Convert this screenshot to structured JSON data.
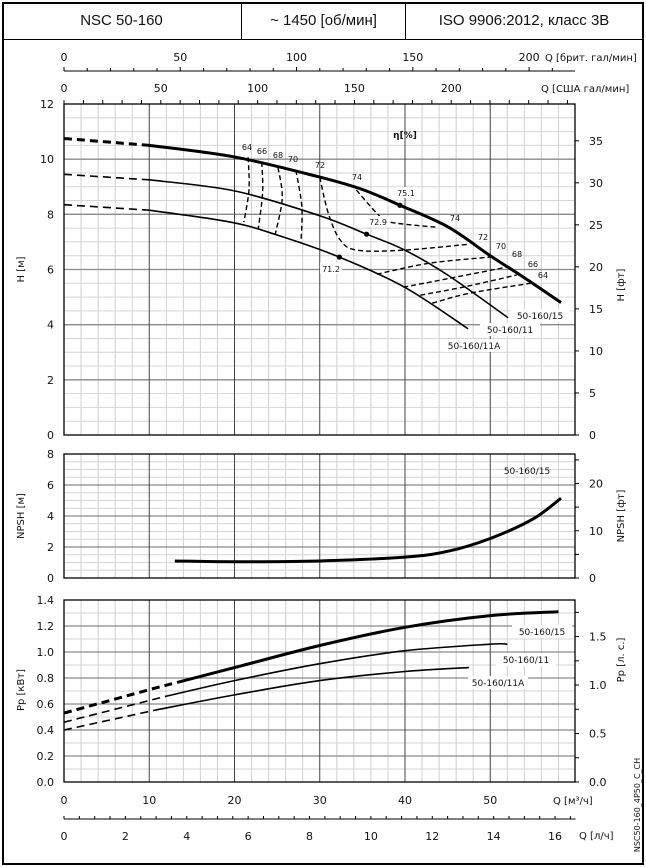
{
  "header": {
    "model": "NSC 50-160",
    "speed": "~ 1450 [об/мин]",
    "standard": "ISO 9906:2012, класс 3B"
  },
  "doc_code": "NSC50-160_4P50_C_CH",
  "chart_data": [
    {
      "type": "line",
      "title": "H-Q",
      "xlabel": "Q [м³/ч]",
      "ylabel": "H [м]",
      "ylabel_right": "H [фт]",
      "xlim": [
        0,
        60
      ],
      "ylim": [
        0,
        12
      ],
      "yticks": [
        "0",
        "2",
        "4",
        "6",
        "8",
        "10",
        "12"
      ],
      "yticks_right": [
        "0",
        "5",
        "10",
        "15",
        "20",
        "25",
        "30",
        "35"
      ],
      "grid": true,
      "efficiency_title": "η[%]",
      "series": [
        {
          "name": "50-160/15",
          "dashed_until": 10,
          "bold": true,
          "points": [
            [
              0,
              10.75
            ],
            [
              10,
              10.5
            ],
            [
              20,
              10.08
            ],
            [
              30,
              9.35
            ],
            [
              35,
              8.9
            ],
            [
              39.4,
              8.33
            ],
            [
              45,
              7.55
            ],
            [
              50,
              6.5
            ],
            [
              54,
              5.7
            ],
            [
              58.3,
              4.8
            ]
          ]
        },
        {
          "name": "50-160/11",
          "dashed_until": 10,
          "points": [
            [
              0,
              9.45
            ],
            [
              10,
              9.25
            ],
            [
              20,
              8.85
            ],
            [
              30,
              7.95
            ],
            [
              35.5,
              7.28
            ],
            [
              40,
              6.7
            ],
            [
              45,
              5.8
            ],
            [
              52.1,
              4.25
            ]
          ]
        },
        {
          "name": "50-160/11A",
          "dashed_until": 10,
          "points": [
            [
              0,
              8.35
            ],
            [
              10,
              8.15
            ],
            [
              19.5,
              7.72
            ],
            [
              25,
              7.25
            ],
            [
              32.3,
              6.45
            ],
            [
              40,
              5.35
            ],
            [
              47.4,
              3.85
            ]
          ]
        }
      ],
      "best_efficiency_points": [
        {
          "label": "75.1",
          "q": 39.4,
          "h": 8.33
        },
        {
          "label": "72.9",
          "q": 35.5,
          "h": 7.28
        },
        {
          "label": "71.2",
          "q": 32.3,
          "h": 6.45
        }
      ],
      "iso_efficiency": [
        {
          "label": "64",
          "points": [
            [
              21.6,
              10.07
            ],
            [
              21.7,
              8.9
            ],
            [
              21.1,
              7.72
            ]
          ]
        },
        {
          "label": "66",
          "points": [
            [
              23.2,
              9.9
            ],
            [
              23.3,
              8.8
            ],
            [
              22.8,
              7.5
            ]
          ]
        },
        {
          "label": "68",
          "points": [
            [
              25.1,
              9.7
            ],
            [
              25.6,
              8.6
            ],
            [
              24.8,
              7.3
            ]
          ]
        },
        {
          "label": "70",
          "points": [
            [
              27.2,
              9.6
            ],
            [
              27.9,
              8.27
            ],
            [
              27.8,
              7.0
            ]
          ]
        },
        {
          "label": "72",
          "points": [
            [
              30,
              9.35
            ],
            [
              31,
              8.04
            ],
            [
              32.4,
              7.07
            ],
            [
              34.4,
              6.7
            ],
            [
              39.8,
              6.7
            ],
            [
              47.6,
              6.92
            ]
          ]
        },
        {
          "label": "74",
          "points": [
            [
              34.3,
              8.88
            ],
            [
              36.7,
              8.04
            ],
            [
              38.2,
              7.72
            ],
            [
              43.8,
              7.53
            ]
          ]
        },
        {
          "label": "70",
          "points": [
            [
              36.7,
              5.83
            ],
            [
              42.9,
              6.23
            ],
            [
              50,
              6.45
            ]
          ]
        },
        {
          "label": "68",
          "points": [
            [
              39.8,
              5.36
            ],
            [
              42.9,
              5.54
            ],
            [
              52,
              6.09
            ]
          ]
        },
        {
          "label": "66",
          "points": [
            [
              41.8,
              5.07
            ],
            [
              46.8,
              5.36
            ],
            [
              53.1,
              5.8
            ]
          ]
        },
        {
          "label": "64",
          "points": [
            [
              43.2,
              4.78
            ],
            [
              47.6,
              5.14
            ],
            [
              54.7,
              5.5
            ]
          ]
        }
      ]
    },
    {
      "type": "line",
      "title": "NPSH-Q",
      "xlabel": "Q [м³/ч]",
      "ylabel": "NPSH [м]",
      "ylabel_right": "NPSH [фт]",
      "xlim": [
        0,
        60
      ],
      "ylim": [
        0,
        8
      ],
      "yticks": [
        "0",
        "2",
        "4",
        "6",
        "8"
      ],
      "yticks_right": [
        "0",
        "10",
        "20"
      ],
      "grid": true,
      "series": [
        {
          "name": "50-160/15",
          "points": [
            [
              13,
              1.1
            ],
            [
              20,
              1.05
            ],
            [
              30,
              1.1
            ],
            [
              40,
              1.35
            ],
            [
              45,
              1.72
            ],
            [
              50,
              2.55
            ],
            [
              55,
              3.8
            ],
            [
              58.3,
              5.15
            ]
          ]
        }
      ]
    },
    {
      "type": "line",
      "title": "P-Q",
      "xlabel": "Q [м³/ч]",
      "ylabel": "Pp [кВт]",
      "ylabel_right": "Pp [л. с.]",
      "xlim": [
        0,
        60
      ],
      "ylim": [
        0,
        1.4
      ],
      "yticks": [
        "0.0",
        "0.2",
        "0.4",
        "0.6",
        "0.8",
        "1.0",
        "1.2",
        "1.4"
      ],
      "yticks_right": [
        "0.0",
        "0.5",
        "1.0",
        "1.5"
      ],
      "grid": true,
      "series": [
        {
          "name": "50-160/15",
          "dashed_until": 13.5,
          "bold": true,
          "points": [
            [
              0,
              0.53
            ],
            [
              10,
              0.71
            ],
            [
              13.5,
              0.77
            ],
            [
              20,
              0.88
            ],
            [
              30,
              1.05
            ],
            [
              40,
              1.19
            ],
            [
              50,
              1.28
            ],
            [
              58,
              1.31
            ]
          ]
        },
        {
          "name": "50-160/11",
          "dashed_until": 12,
          "points": [
            [
              0,
              0.46
            ],
            [
              12,
              0.66
            ],
            [
              20,
              0.78
            ],
            [
              30,
              0.91
            ],
            [
              40,
              1.01
            ],
            [
              50,
              1.06
            ],
            [
              52,
              1.06
            ]
          ]
        },
        {
          "name": "50-160/11A",
          "dashed_until": 10.5,
          "points": [
            [
              0,
              0.4
            ],
            [
              10.5,
              0.55
            ],
            [
              20,
              0.67
            ],
            [
              30,
              0.78
            ],
            [
              40,
              0.85
            ],
            [
              47.5,
              0.88
            ]
          ]
        }
      ]
    }
  ],
  "axes": {
    "q_m3h": {
      "label": "Q [м³/ч]",
      "ticks": [
        "0",
        "10",
        "20",
        "30",
        "40",
        "50"
      ]
    },
    "q_ls": {
      "label": "Q [л/ч]",
      "ticks": [
        "0",
        "2",
        "4",
        "6",
        "8",
        "10",
        "12",
        "14",
        "16"
      ]
    },
    "q_uk_gpm": {
      "label": "Q [брит. гал/мин]",
      "ticks": [
        "0",
        "50",
        "100",
        "150",
        "200"
      ]
    },
    "q_us_gpm": {
      "label": "Q [США гал/мин]",
      "ticks": [
        "0",
        "50",
        "100",
        "150",
        "200"
      ]
    }
  }
}
